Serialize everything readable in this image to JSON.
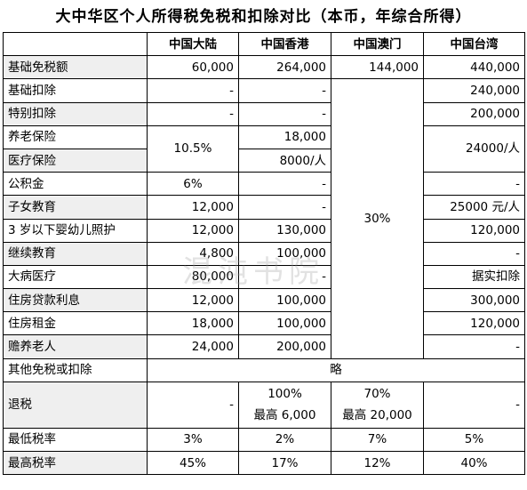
{
  "title": "大中华区个人所得税免税和扣除对比（本币，年综合所得）",
  "watermark": "混沌书院",
  "columns": [
    "",
    "中国大陆",
    "中国香港",
    "中国澳门",
    "中国台湾"
  ],
  "rows": {
    "jichu_mianshui": {
      "label": "基础免税额",
      "mainland": "60,000",
      "hk": "264,000",
      "macau": "144,000",
      "taiwan": "440,000"
    },
    "jichu_kouchu": {
      "label": "基础扣除",
      "mainland": "-",
      "hk": "-",
      "taiwan": "240,000"
    },
    "tebie_kouchu": {
      "label": "特别扣除",
      "mainland": "-",
      "hk": "-",
      "taiwan": "200,000"
    },
    "yanglao": {
      "label": "养老保险",
      "hk": "18,000"
    },
    "yiliao": {
      "label": "医疗保险",
      "hk": "8000/人"
    },
    "insurance_shared": {
      "mainland": "10.5%",
      "taiwan": "24000/人"
    },
    "gongjijin": {
      "label": "公积金",
      "mainland": "6%",
      "hk": "-",
      "taiwan": "-"
    },
    "zinv": {
      "label": "子女教育",
      "mainland": "12,000",
      "hk": "-",
      "taiwan": "25000 元/人"
    },
    "yinger": {
      "label": "3 岁以下婴幼儿照护",
      "mainland": "12,000",
      "hk": "130,000",
      "taiwan": "120,000"
    },
    "jixu": {
      "label": "继续教育",
      "mainland": "4,800",
      "hk": "100,000",
      "taiwan": "-"
    },
    "dabing": {
      "label": "大病医疗",
      "mainland": "80,000",
      "hk": "-",
      "taiwan": "据实扣除"
    },
    "zhufang_daikuan": {
      "label": "住房贷款利息",
      "mainland": "12,000",
      "hk": "100,000",
      "taiwan": "300,000"
    },
    "zhufang_zujin": {
      "label": "住房租金",
      "mainland": "18,000",
      "hk": "100,000",
      "taiwan": "120,000"
    },
    "shanyang": {
      "label": "赡养老人",
      "mainland": "24,000",
      "hk": "200,000",
      "taiwan": "-"
    },
    "macau_merged": "30%",
    "qita": {
      "label": "其他免税或扣除",
      "merged": "略"
    },
    "tuishui": {
      "label": "退税",
      "mainland": "-",
      "hk_top": "100%",
      "hk_bottom": "最高 6,000",
      "macau_top": "70%",
      "macau_bottom": "最高 20,000",
      "taiwan": "-"
    },
    "zuidi": {
      "label": "最低税率",
      "mainland": "3%",
      "hk": "2%",
      "macau": "7%",
      "taiwan": "5%"
    },
    "zuigao": {
      "label": "最高税率",
      "mainland": "45%",
      "hk": "17%",
      "macau": "12%",
      "taiwan": "40%"
    }
  }
}
